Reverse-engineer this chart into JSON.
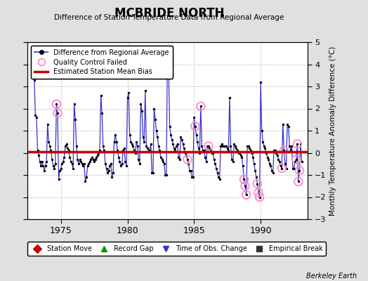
{
  "title": "MCBRIDE NORTH",
  "subtitle": "Difference of Station Temperature Data from Regional Average",
  "ylabel": "Monthly Temperature Anomaly Difference (°C)",
  "watermark": "Berkeley Earth",
  "xlim": [
    1972.5,
    1993.5
  ],
  "ylim": [
    -3,
    5
  ],
  "yticks": [
    -3,
    -2,
    -1,
    0,
    1,
    2,
    3,
    4,
    5
  ],
  "xticks": [
    1975,
    1980,
    1985,
    1990
  ],
  "bias_line": 0.05,
  "background_color": "#e0e0e0",
  "plot_bg_color": "#ffffff",
  "data_color": "#3333cc",
  "bias_color": "#cc0000",
  "qc_color": "#ff88cc",
  "series": [
    [
      1973.0,
      3.3
    ],
    [
      1973.083,
      1.7
    ],
    [
      1973.167,
      1.6
    ],
    [
      1973.25,
      0.1
    ],
    [
      1973.333,
      -0.1
    ],
    [
      1973.417,
      -0.4
    ],
    [
      1973.5,
      -0.6
    ],
    [
      1973.583,
      -0.4
    ],
    [
      1973.667,
      -0.6
    ],
    [
      1973.75,
      -0.8
    ],
    [
      1973.833,
      -0.6
    ],
    [
      1973.917,
      -0.4
    ],
    [
      1974.0,
      1.3
    ],
    [
      1974.083,
      0.5
    ],
    [
      1974.167,
      0.3
    ],
    [
      1974.25,
      0.1
    ],
    [
      1974.333,
      -0.3
    ],
    [
      1974.417,
      -0.6
    ],
    [
      1974.5,
      -0.7
    ],
    [
      1974.583,
      -0.5
    ],
    [
      1974.667,
      2.2
    ],
    [
      1974.75,
      1.8
    ],
    [
      1974.833,
      -1.2
    ],
    [
      1974.917,
      -0.8
    ],
    [
      1975.0,
      -0.7
    ],
    [
      1975.083,
      -0.5
    ],
    [
      1975.167,
      -0.4
    ],
    [
      1975.25,
      -0.2
    ],
    [
      1975.333,
      0.3
    ],
    [
      1975.417,
      0.4
    ],
    [
      1975.5,
      0.2
    ],
    [
      1975.583,
      0.1
    ],
    [
      1975.667,
      -0.2
    ],
    [
      1975.75,
      -0.4
    ],
    [
      1975.833,
      -0.5
    ],
    [
      1975.917,
      -0.7
    ],
    [
      1976.0,
      2.2
    ],
    [
      1976.083,
      1.5
    ],
    [
      1976.167,
      0.3
    ],
    [
      1976.25,
      -0.3
    ],
    [
      1976.333,
      -0.5
    ],
    [
      1976.417,
      -0.3
    ],
    [
      1976.5,
      -0.4
    ],
    [
      1976.583,
      -0.5
    ],
    [
      1976.667,
      -0.6
    ],
    [
      1976.75,
      -0.5
    ],
    [
      1976.833,
      -1.3
    ],
    [
      1976.917,
      -1.1
    ],
    [
      1977.0,
      -0.6
    ],
    [
      1977.083,
      -0.5
    ],
    [
      1977.167,
      -0.4
    ],
    [
      1977.25,
      -0.3
    ],
    [
      1977.333,
      -0.2
    ],
    [
      1977.417,
      -0.3
    ],
    [
      1977.5,
      -0.4
    ],
    [
      1977.583,
      -0.3
    ],
    [
      1977.667,
      -0.2
    ],
    [
      1977.75,
      -0.1
    ],
    [
      1977.833,
      0.0
    ],
    [
      1977.917,
      0.1
    ],
    [
      1978.0,
      2.6
    ],
    [
      1978.083,
      1.8
    ],
    [
      1978.167,
      0.3
    ],
    [
      1978.25,
      0.1
    ],
    [
      1978.333,
      -0.5
    ],
    [
      1978.417,
      -0.7
    ],
    [
      1978.5,
      -0.9
    ],
    [
      1978.583,
      -0.8
    ],
    [
      1978.667,
      -0.6
    ],
    [
      1978.75,
      -0.5
    ],
    [
      1978.833,
      -1.1
    ],
    [
      1978.917,
      -0.9
    ],
    [
      1979.0,
      0.5
    ],
    [
      1979.083,
      0.8
    ],
    [
      1979.167,
      0.5
    ],
    [
      1979.25,
      0.1
    ],
    [
      1979.333,
      -0.2
    ],
    [
      1979.417,
      -0.4
    ],
    [
      1979.5,
      -0.6
    ],
    [
      1979.583,
      -0.5
    ],
    [
      1979.667,
      0.1
    ],
    [
      1979.75,
      0.2
    ],
    [
      1979.833,
      -0.4
    ],
    [
      1979.917,
      -0.6
    ],
    [
      1980.0,
      2.5
    ],
    [
      1980.083,
      2.7
    ],
    [
      1980.167,
      0.8
    ],
    [
      1980.25,
      0.5
    ],
    [
      1980.333,
      0.4
    ],
    [
      1980.417,
      0.3
    ],
    [
      1980.5,
      0.1
    ],
    [
      1980.583,
      0.0
    ],
    [
      1980.667,
      0.5
    ],
    [
      1980.75,
      0.3
    ],
    [
      1980.833,
      -0.3
    ],
    [
      1980.917,
      -0.5
    ],
    [
      1981.0,
      2.2
    ],
    [
      1981.083,
      1.9
    ],
    [
      1981.167,
      0.7
    ],
    [
      1981.25,
      0.5
    ],
    [
      1981.333,
      2.8
    ],
    [
      1981.417,
      0.3
    ],
    [
      1981.5,
      0.2
    ],
    [
      1981.583,
      0.1
    ],
    [
      1981.667,
      0.1
    ],
    [
      1981.75,
      0.4
    ],
    [
      1981.833,
      -0.9
    ],
    [
      1981.917,
      -0.9
    ],
    [
      1982.0,
      2.0
    ],
    [
      1982.083,
      1.5
    ],
    [
      1982.167,
      1.0
    ],
    [
      1982.25,
      0.7
    ],
    [
      1982.333,
      0.3
    ],
    [
      1982.417,
      0.1
    ],
    [
      1982.5,
      -0.2
    ],
    [
      1982.583,
      -0.3
    ],
    [
      1982.667,
      -0.4
    ],
    [
      1982.75,
      -0.5
    ],
    [
      1982.833,
      -1.0
    ],
    [
      1982.917,
      -1.0
    ],
    [
      1983.0,
      4.5
    ],
    [
      1983.083,
      4.0
    ],
    [
      1983.167,
      1.2
    ],
    [
      1983.25,
      0.8
    ],
    [
      1983.333,
      0.6
    ],
    [
      1983.417,
      0.4
    ],
    [
      1983.5,
      0.2
    ],
    [
      1983.583,
      0.1
    ],
    [
      1983.667,
      0.3
    ],
    [
      1983.75,
      0.4
    ],
    [
      1983.833,
      -0.2
    ],
    [
      1983.917,
      -0.3
    ],
    [
      1984.0,
      0.7
    ],
    [
      1984.083,
      0.6
    ],
    [
      1984.167,
      0.4
    ],
    [
      1984.25,
      0.2
    ],
    [
      1984.333,
      0.0
    ],
    [
      1984.417,
      -0.1
    ],
    [
      1984.5,
      -0.3
    ],
    [
      1984.583,
      -0.5
    ],
    [
      1984.667,
      -0.8
    ],
    [
      1984.75,
      -0.8
    ],
    [
      1984.833,
      -1.1
    ],
    [
      1984.917,
      -1.1
    ],
    [
      1985.0,
      1.6
    ],
    [
      1985.083,
      1.2
    ],
    [
      1985.167,
      0.8
    ],
    [
      1985.25,
      0.5
    ],
    [
      1985.333,
      0.2
    ],
    [
      1985.417,
      0.0
    ],
    [
      1985.5,
      2.1
    ],
    [
      1985.583,
      0.3
    ],
    [
      1985.667,
      0.1
    ],
    [
      1985.75,
      0.1
    ],
    [
      1985.833,
      -0.2
    ],
    [
      1985.917,
      -0.4
    ],
    [
      1986.0,
      0.3
    ],
    [
      1986.083,
      0.3
    ],
    [
      1986.167,
      0.2
    ],
    [
      1986.25,
      0.1
    ],
    [
      1986.333,
      0.0
    ],
    [
      1986.417,
      0.0
    ],
    [
      1986.5,
      -0.3
    ],
    [
      1986.583,
      -0.5
    ],
    [
      1986.667,
      -0.7
    ],
    [
      1986.75,
      -0.9
    ],
    [
      1986.833,
      -1.1
    ],
    [
      1986.917,
      -1.2
    ],
    [
      1987.0,
      0.3
    ],
    [
      1987.083,
      0.4
    ],
    [
      1987.167,
      0.3
    ],
    [
      1987.25,
      0.3
    ],
    [
      1987.333,
      0.3
    ],
    [
      1987.417,
      0.3
    ],
    [
      1987.5,
      0.2
    ],
    [
      1987.583,
      0.1
    ],
    [
      1987.667,
      2.5
    ],
    [
      1987.75,
      0.3
    ],
    [
      1987.833,
      -0.3
    ],
    [
      1987.917,
      -0.4
    ],
    [
      1988.0,
      0.4
    ],
    [
      1988.083,
      0.3
    ],
    [
      1988.167,
      0.2
    ],
    [
      1988.25,
      0.1
    ],
    [
      1988.333,
      0.0
    ],
    [
      1988.417,
      0.0
    ],
    [
      1988.5,
      -0.1
    ],
    [
      1988.583,
      -0.2
    ],
    [
      1988.667,
      -0.6
    ],
    [
      1988.75,
      -1.2
    ],
    [
      1988.833,
      -1.5
    ],
    [
      1988.917,
      -1.9
    ],
    [
      1989.0,
      0.3
    ],
    [
      1989.083,
      0.3
    ],
    [
      1989.167,
      0.2
    ],
    [
      1989.25,
      0.1
    ],
    [
      1989.333,
      0.0
    ],
    [
      1989.417,
      -0.2
    ],
    [
      1989.5,
      -0.5
    ],
    [
      1989.583,
      -0.8
    ],
    [
      1989.667,
      -1.1
    ],
    [
      1989.75,
      -1.4
    ],
    [
      1989.833,
      -1.8
    ],
    [
      1989.917,
      -2.0
    ],
    [
      1990.0,
      3.2
    ],
    [
      1990.083,
      1.0
    ],
    [
      1990.167,
      0.5
    ],
    [
      1990.25,
      0.3
    ],
    [
      1990.333,
      0.2
    ],
    [
      1990.417,
      0.0
    ],
    [
      1990.5,
      -0.2
    ],
    [
      1990.583,
      -0.3
    ],
    [
      1990.667,
      -0.5
    ],
    [
      1990.75,
      -0.6
    ],
    [
      1990.833,
      -0.8
    ],
    [
      1990.917,
      -0.9
    ],
    [
      1991.0,
      0.1
    ],
    [
      1991.083,
      0.1
    ],
    [
      1991.167,
      0.0
    ],
    [
      1991.25,
      -0.1
    ],
    [
      1991.333,
      -0.3
    ],
    [
      1991.417,
      -0.4
    ],
    [
      1991.5,
      -0.6
    ],
    [
      1991.583,
      -0.7
    ],
    [
      1991.667,
      1.3
    ],
    [
      1991.75,
      0.1
    ],
    [
      1991.833,
      -0.5
    ],
    [
      1991.917,
      -0.7
    ],
    [
      1992.0,
      1.3
    ],
    [
      1992.083,
      1.2
    ],
    [
      1992.167,
      0.3
    ],
    [
      1992.25,
      0.1
    ],
    [
      1992.333,
      0.3
    ],
    [
      1992.417,
      -0.7
    ],
    [
      1992.5,
      -0.7
    ],
    [
      1992.583,
      -0.4
    ],
    [
      1992.667,
      -0.3
    ],
    [
      1992.75,
      0.4
    ],
    [
      1992.833,
      -1.3
    ],
    [
      1992.917,
      -0.8
    ],
    [
      1993.0,
      0.4
    ],
    [
      1993.083,
      -0.4
    ]
  ],
  "qc_failed": [
    [
      1974.667,
      2.2
    ],
    [
      1974.75,
      1.8
    ],
    [
      1984.5,
      -0.3
    ],
    [
      1985.083,
      1.2
    ],
    [
      1985.5,
      2.1
    ],
    [
      1986.083,
      0.3
    ],
    [
      1988.75,
      -1.2
    ],
    [
      1988.833,
      -1.5
    ],
    [
      1988.917,
      -1.9
    ],
    [
      1989.75,
      -1.4
    ],
    [
      1989.833,
      -1.8
    ],
    [
      1989.917,
      -2.0
    ],
    [
      1991.583,
      -0.7
    ],
    [
      1991.75,
      0.1
    ],
    [
      1992.667,
      -0.3
    ],
    [
      1992.75,
      0.4
    ],
    [
      1992.833,
      -1.3
    ],
    [
      1992.917,
      -0.8
    ]
  ],
  "legend1_items": [
    {
      "label": "Difference from Regional Average"
    },
    {
      "label": "Quality Control Failed"
    },
    {
      "label": "Estimated Station Mean Bias"
    }
  ],
  "legend2_items": [
    {
      "label": "Station Move",
      "color": "#cc0000",
      "marker": "D"
    },
    {
      "label": "Record Gap",
      "color": "#009900",
      "marker": "^"
    },
    {
      "label": "Time of Obs. Change",
      "color": "#3333cc",
      "marker": "v"
    },
    {
      "label": "Empirical Break",
      "color": "#333333",
      "marker": "s"
    }
  ]
}
